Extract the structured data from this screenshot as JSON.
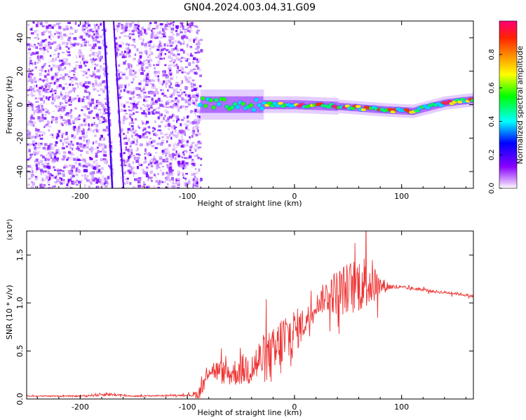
{
  "title": "GN04.2024.003.04.31.G09",
  "chart_data": [
    {
      "type": "heatmap",
      "xlabel": "Height of straight line (km)",
      "ylabel": "Frequency (Hz)",
      "xlim": [
        -250,
        167
      ],
      "ylim": [
        -50,
        50
      ],
      "xticks": [
        -200,
        -100,
        0,
        100
      ],
      "xtick_labels": [
        "-200",
        "-100",
        "0",
        "100"
      ],
      "yticks": [
        -40,
        -20,
        0,
        20,
        40
      ],
      "ytick_labels": [
        "-40",
        "-20",
        "0",
        "20",
        "40"
      ],
      "grid": false,
      "colorbar": {
        "label": "Normalized spectral amplitude",
        "range": [
          0,
          1
        ],
        "ticks": [
          0.0,
          0.2,
          0.4,
          0.6,
          0.8
        ],
        "tick_labels": [
          "0.0",
          "0.2",
          "0.4",
          "0.6",
          "0.8"
        ],
        "colors": [
          "#ffffff",
          "#8800ff",
          "#0000ff",
          "#00ffff",
          "#00ff00",
          "#ffff00",
          "#ff8800",
          "#ff0000",
          "#ff0088"
        ]
      },
      "features": {
        "noise_region_x": [
          -250,
          -88
        ],
        "signal_track": [
          {
            "x": -88,
            "f": 0
          },
          {
            "x": -40,
            "f": 0
          },
          {
            "x": 0,
            "f": 0
          },
          {
            "x": 40,
            "f": -1
          },
          {
            "x": 80,
            "f": -3
          },
          {
            "x": 110,
            "f": -4
          },
          {
            "x": 140,
            "f": 1
          },
          {
            "x": 167,
            "f": 3
          }
        ],
        "streak": {
          "x_top": -178,
          "x_bottom": -170
        }
      }
    },
    {
      "type": "line",
      "xlabel": "Height of straight line (km)",
      "ylabel": "SNR (10 * v/v)",
      "scale_label": "(x10⁴)",
      "xlim": [
        -250,
        167
      ],
      "ylim": [
        0,
        1.75
      ],
      "xticks": [
        -200,
        -100,
        0,
        100
      ],
      "xtick_labels": [
        "-200",
        "-100",
        "0",
        "100"
      ],
      "yticks": [
        0.0,
        0.5,
        1.0,
        1.5
      ],
      "ytick_labels": [
        "0.0",
        "0.5",
        "1.0",
        "1.5"
      ],
      "grid": false,
      "series": [
        {
          "color": "#ee3333",
          "x": [
            -250,
            -200,
            -175,
            -150,
            -100,
            -90,
            -85,
            -80,
            -70,
            -60,
            -50,
            -40,
            -30,
            -20,
            -10,
            0,
            10,
            20,
            30,
            40,
            50,
            60,
            70,
            80,
            90,
            100,
            110,
            120,
            130,
            140,
            150,
            167
          ],
          "y": [
            0.03,
            0.03,
            0.05,
            0.03,
            0.04,
            0.05,
            0.15,
            0.32,
            0.28,
            0.26,
            0.3,
            0.33,
            0.42,
            0.44,
            0.6,
            0.7,
            0.8,
            0.98,
            1.08,
            1.12,
            1.15,
            1.2,
            1.22,
            1.18,
            1.17,
            1.16,
            1.15,
            1.14,
            1.12,
            1.11,
            1.1,
            1.07
          ],
          "amp": [
            0.005,
            0.008,
            0.02,
            0.008,
            0.008,
            0.05,
            0.12,
            0.1,
            0.12,
            0.13,
            0.16,
            0.2,
            0.25,
            0.3,
            0.35,
            0.25,
            0.15,
            0.1,
            0.18,
            0.25,
            0.28,
            0.3,
            0.3,
            0.1,
            0.03,
            0.02,
            0.02,
            0.015,
            0.015,
            0.015,
            0.015,
            0.015
          ]
        }
      ]
    }
  ]
}
